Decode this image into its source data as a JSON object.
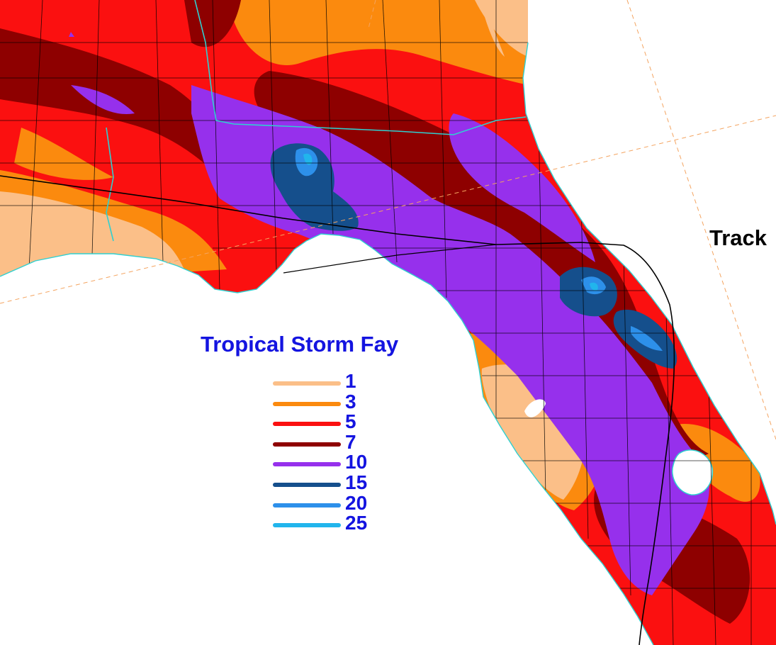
{
  "map": {
    "title": "Tropical Storm Fay",
    "track_label": "Track",
    "legend": [
      {
        "value": "1",
        "color": "#fbbf88"
      },
      {
        "value": "3",
        "color": "#fb8a0e"
      },
      {
        "value": "5",
        "color": "#fb1010"
      },
      {
        "value": "7",
        "color": "#8e0000"
      },
      {
        "value": "10",
        "color": "#9630ec"
      },
      {
        "value": "15",
        "color": "#154f8c"
      },
      {
        "value": "20",
        "color": "#2d90ea"
      },
      {
        "value": "25",
        "color": "#21b5ec"
      }
    ],
    "colors": {
      "water": "#ffffff",
      "county_lines": "#000000",
      "state_lines": "#2fd0d0",
      "track_line": "#000000",
      "grid_lines": "#f4a460"
    }
  }
}
